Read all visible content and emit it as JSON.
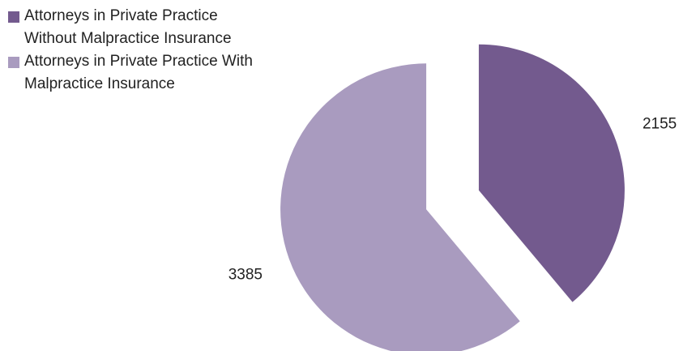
{
  "chart_data": {
    "type": "pie",
    "categories": [
      "Attorneys in Private Practice Without Malpractice Insurance",
      "Attorneys in Private Practice With Malpractice Insurance"
    ],
    "values": [
      2155,
      3385
    ],
    "colors": [
      "#735a8e",
      "#a99bbf"
    ],
    "legend": "top-left"
  }
}
